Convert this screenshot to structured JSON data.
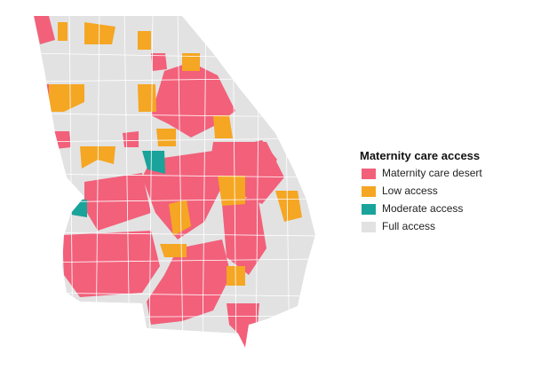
{
  "legend": {
    "title": "Maternity care access",
    "items": [
      {
        "label": "Maternity care desert",
        "color": "#f2607a"
      },
      {
        "label": "Low access",
        "color": "#f5a623"
      },
      {
        "label": "Moderate access",
        "color": "#1aa39a"
      },
      {
        "label": "Full access",
        "color": "#e2e2e2"
      }
    ]
  }
}
